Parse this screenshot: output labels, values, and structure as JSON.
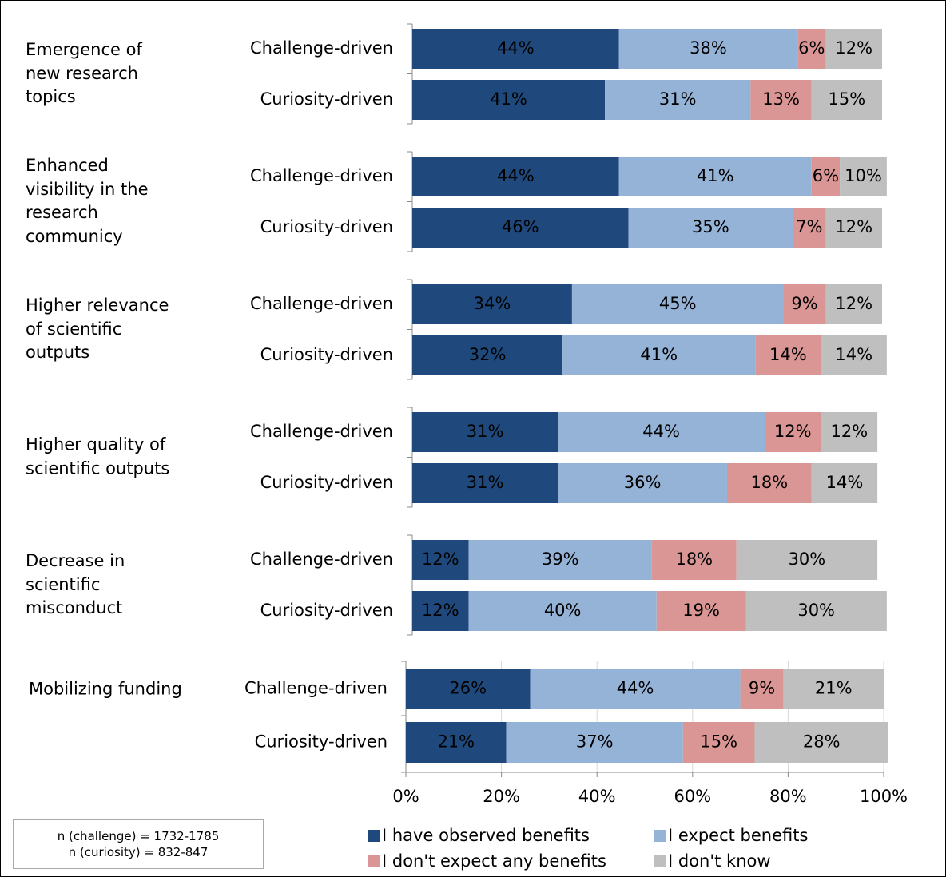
{
  "chart_data": [
    {
      "type": "bar",
      "orientation": "horizontal",
      "stacked": true,
      "title": "Emergence of new research topics",
      "categories": [
        "Challenge-driven",
        "Curiosity-driven"
      ],
      "xlim": [
        0,
        100
      ],
      "series": [
        {
          "name": "I have observed benefits",
          "color": "#1f497d",
          "values": [
            44,
            41
          ],
          "value_labels": [
            "44%",
            "41%"
          ]
        },
        {
          "name": "I expect benefits",
          "color": "#95b3d7",
          "values": [
            38,
            31
          ],
          "value_labels": [
            "38%",
            "31%"
          ]
        },
        {
          "name": "I don't expect any benefits",
          "color": "#da9694",
          "values": [
            6,
            13
          ],
          "value_labels": [
            "6%",
            "13%"
          ]
        },
        {
          "name": "I don't know",
          "color": "#bfbfbf",
          "values": [
            12,
            15
          ],
          "value_labels": [
            "12%",
            "15%"
          ]
        }
      ]
    },
    {
      "type": "bar",
      "orientation": "horizontal",
      "stacked": true,
      "title": "Enhanced visibility in the research communicy",
      "categories": [
        "Challenge-driven",
        "Curiosity-driven"
      ],
      "xlim": [
        0,
        100
      ],
      "series": [
        {
          "name": "I have observed benefits",
          "color": "#1f497d",
          "values": [
            44,
            46
          ],
          "value_labels": [
            "44%",
            "46%"
          ]
        },
        {
          "name": "I expect benefits",
          "color": "#95b3d7",
          "values": [
            41,
            35
          ],
          "value_labels": [
            "41%",
            "35%"
          ]
        },
        {
          "name": "I don't expect any benefits",
          "color": "#da9694",
          "values": [
            6,
            7
          ],
          "value_labels": [
            "6%",
            "7%"
          ]
        },
        {
          "name": "I don't know",
          "color": "#bfbfbf",
          "values": [
            10,
            12
          ],
          "value_labels": [
            "10%",
            "12%"
          ]
        }
      ]
    },
    {
      "type": "bar",
      "orientation": "horizontal",
      "stacked": true,
      "title": "Higher relevance of scientific outputs",
      "categories": [
        "Challenge-driven",
        "Curiosity-driven"
      ],
      "xlim": [
        0,
        100
      ],
      "series": [
        {
          "name": "I have observed benefits",
          "color": "#1f497d",
          "values": [
            34,
            32
          ],
          "value_labels": [
            "34%",
            "32%"
          ]
        },
        {
          "name": "I expect benefits",
          "color": "#95b3d7",
          "values": [
            45,
            41
          ],
          "value_labels": [
            "45%",
            "41%"
          ]
        },
        {
          "name": "I don't expect any benefits",
          "color": "#da9694",
          "values": [
            9,
            14
          ],
          "value_labels": [
            "9%",
            "14%"
          ]
        },
        {
          "name": "I don't know",
          "color": "#bfbfbf",
          "values": [
            12,
            14
          ],
          "value_labels": [
            "12%",
            "14%"
          ]
        }
      ]
    },
    {
      "type": "bar",
      "orientation": "horizontal",
      "stacked": true,
      "title": "Higher quality of scientific outputs",
      "categories": [
        "Challenge-driven",
        "Curiosity-driven"
      ],
      "xlim": [
        0,
        100
      ],
      "series": [
        {
          "name": "I have observed benefits",
          "color": "#1f497d",
          "values": [
            31,
            31
          ],
          "value_labels": [
            "31%",
            "31%"
          ]
        },
        {
          "name": "I expect benefits",
          "color": "#95b3d7",
          "values": [
            44,
            36
          ],
          "value_labels": [
            "44%",
            "36%"
          ]
        },
        {
          "name": "I don't expect any benefits",
          "color": "#da9694",
          "values": [
            12,
            18
          ],
          "value_labels": [
            "12%",
            "18%"
          ]
        },
        {
          "name": "I don't know",
          "color": "#bfbfbf",
          "values": [
            12,
            14
          ],
          "value_labels": [
            "12%",
            "14%"
          ]
        }
      ]
    },
    {
      "type": "bar",
      "orientation": "horizontal",
      "stacked": true,
      "title": "Decrease in scientific misconduct",
      "categories": [
        "Challenge-driven",
        "Curiosity-driven"
      ],
      "xlim": [
        0,
        100
      ],
      "series": [
        {
          "name": "I have observed benefits",
          "color": "#1f497d",
          "values": [
            12,
            12
          ],
          "value_labels": [
            "12%",
            "12%"
          ]
        },
        {
          "name": "I expect benefits",
          "color": "#95b3d7",
          "values": [
            39,
            40
          ],
          "value_labels": [
            "39%",
            "40%"
          ]
        },
        {
          "name": "I don't expect any benefits",
          "color": "#da9694",
          "values": [
            18,
            19
          ],
          "value_labels": [
            "18%",
            "19%"
          ]
        },
        {
          "name": "I don't know",
          "color": "#bfbfbf",
          "values": [
            30,
            30
          ],
          "value_labels": [
            "30%",
            "30%"
          ]
        }
      ]
    },
    {
      "type": "bar",
      "orientation": "horizontal",
      "stacked": true,
      "title": "Mobilizing funding",
      "categories": [
        "Challenge-driven",
        "Curiosity-driven"
      ],
      "xlim": [
        0,
        100
      ],
      "grid": true,
      "xticks": [
        {
          "value": 0,
          "label": "0%"
        },
        {
          "value": 20,
          "label": "20%"
        },
        {
          "value": 40,
          "label": "40%"
        },
        {
          "value": 60,
          "label": "60%"
        },
        {
          "value": 80,
          "label": "80%"
        },
        {
          "value": 100,
          "label": "100%"
        }
      ],
      "series": [
        {
          "name": "I have observed benefits",
          "color": "#1f497d",
          "values": [
            26,
            21
          ],
          "value_labels": [
            "26%",
            "21%"
          ]
        },
        {
          "name": "I expect benefits",
          "color": "#95b3d7",
          "values": [
            44,
            37
          ],
          "value_labels": [
            "44%",
            "37%"
          ]
        },
        {
          "name": "I don't expect any benefits",
          "color": "#da9694",
          "values": [
            9,
            15
          ],
          "value_labels": [
            "9%",
            "15%"
          ]
        },
        {
          "name": "I don't know",
          "color": "#bfbfbf",
          "values": [
            21,
            28
          ],
          "value_labels": [
            "21%",
            "28%"
          ]
        }
      ]
    }
  ],
  "notes": [
    "n (challenge) = 1732-1785",
    "n (curiosity) = 832-847"
  ]
}
